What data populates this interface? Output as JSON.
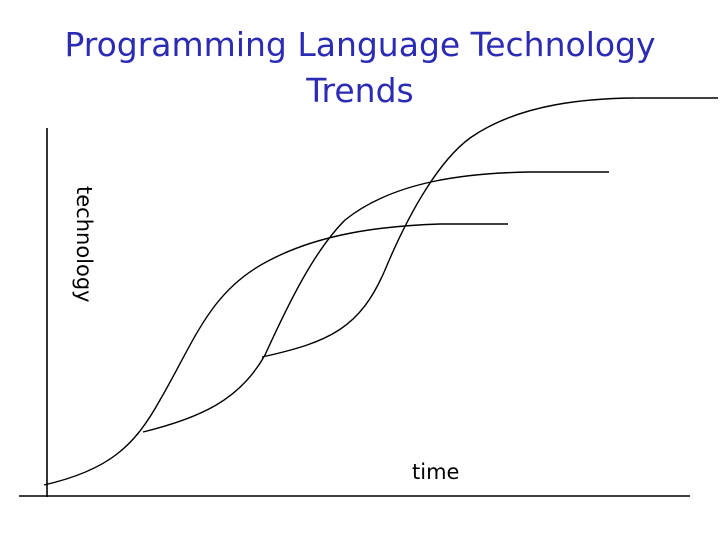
{
  "slide": {
    "title_line1": "Programming Language Technology",
    "title_line2": "Trends"
  },
  "diagram": {
    "ylabel": "technology",
    "xlabel": "time",
    "curves": [
      "s-curve-1",
      "s-curve-2",
      "s-curve-3"
    ]
  }
}
